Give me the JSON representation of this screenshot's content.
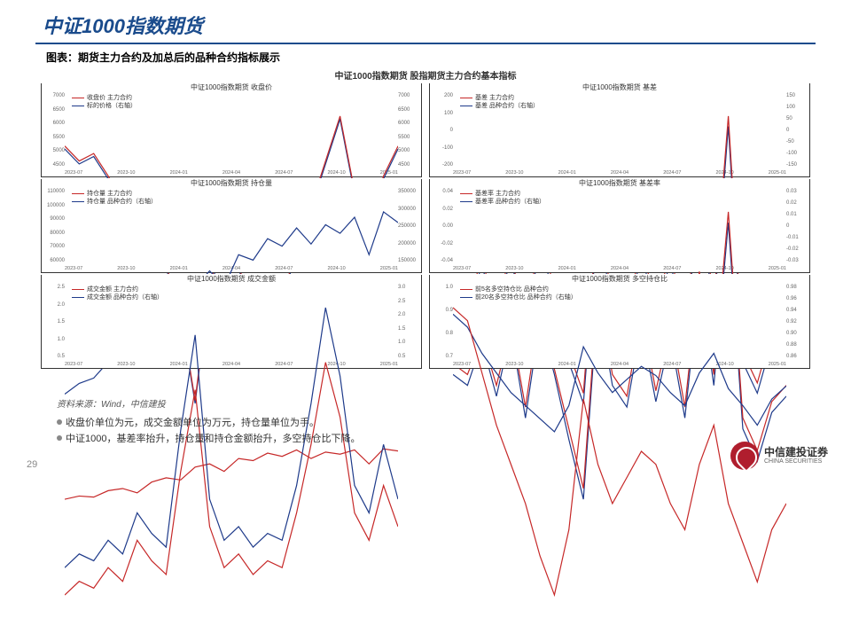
{
  "title": "中证1000指数期货",
  "chart_caption": "图表：期货主力合约及加总后的品种合约指标展示",
  "overall_title": "中证1000指数期货 股指期货主力合约基本指标",
  "colors": {
    "series1": "#c62828",
    "series2": "#1e3a8a",
    "border": "#333333",
    "grid": "#e8e8e8",
    "title": "#1a4b8c"
  },
  "x_ticks": [
    "2023-07",
    "2023-10",
    "2024-01",
    "2024-04",
    "2024-07",
    "2024-10",
    "2025-01"
  ],
  "panels": [
    {
      "title": "中证1000指数期货 收盘价",
      "legend": [
        "收盘价 主力合约",
        "标的价格（右轴）"
      ],
      "y_left": [
        "7000",
        "6500",
        "6000",
        "5500",
        "5000",
        "4500"
      ],
      "y_right": [
        "7000",
        "6500",
        "6000",
        "5500",
        "5000",
        "4500"
      ],
      "series1": [
        6300,
        6200,
        6250,
        6100,
        5900,
        5600,
        5700,
        5500,
        5200,
        4600,
        5400,
        5600,
        5500,
        5200,
        4900,
        5300,
        5600,
        5900,
        6200,
        6500,
        6000,
        5750,
        6100,
        6300
      ],
      "series2": [
        6280,
        6180,
        6230,
        6080,
        5880,
        5580,
        5680,
        5480,
        5180,
        4580,
        5380,
        5580,
        5480,
        5180,
        4880,
        5280,
        5580,
        5880,
        6180,
        6480,
        5980,
        5730,
        6080,
        6280
      ]
    },
    {
      "title": "中证1000指数期货 基差",
      "legend": [
        "基差 主力合约",
        "基差 品种合约（右轴）"
      ],
      "y_left": [
        "200",
        "100",
        "0",
        "-100",
        "-200"
      ],
      "y_right": [
        "150",
        "100",
        "50",
        "0",
        "-50",
        "-100",
        "-150"
      ],
      "series1": [
        -20,
        -30,
        10,
        -40,
        20,
        -60,
        40,
        -20,
        -80,
        -120,
        60,
        -30,
        -50,
        30,
        -40,
        20,
        -60,
        80,
        -30,
        150,
        -80,
        -110,
        -60,
        -40
      ],
      "series2": [
        -30,
        -40,
        5,
        -50,
        15,
        -70,
        30,
        -30,
        -90,
        -130,
        50,
        -40,
        -60,
        20,
        -50,
        10,
        -70,
        70,
        -40,
        140,
        -90,
        -120,
        -70,
        -50
      ]
    },
    {
      "title": "中证1000指数期货 持仓量",
      "legend": [
        "持仓量 主力合约",
        "持仓量 品种合约（右轴）"
      ],
      "y_left": [
        "110000",
        "100000",
        "90000",
        "80000",
        "70000",
        "60000"
      ],
      "y_right": [
        "350000",
        "300000",
        "250000",
        "200000",
        "150000"
      ],
      "series1": [
        62000,
        65000,
        64000,
        70000,
        72000,
        68000,
        78000,
        82000,
        80000,
        92000,
        95000,
        88000,
        100000,
        98000,
        105000,
        102000,
        108000,
        100000,
        106000,
        104000,
        108000,
        95000,
        109000,
        107000
      ],
      "series2": [
        160000,
        170000,
        175000,
        190000,
        200000,
        195000,
        220000,
        235000,
        228000,
        260000,
        275000,
        260000,
        290000,
        285000,
        305000,
        298000,
        315000,
        300000,
        318000,
        310000,
        325000,
        290000,
        330000,
        320000
      ]
    },
    {
      "title": "中证1000指数期货 基差率",
      "legend": [
        "基差率 主力合约",
        "基差率 品种合约（右轴）"
      ],
      "y_left": [
        "0.04",
        "0.02",
        "0.00",
        "-0.02",
        "-0.04"
      ],
      "y_right": [
        "0.03",
        "0.02",
        "0.01",
        "0",
        "-0.01",
        "-0.02",
        "-0.03"
      ],
      "series1": [
        -0.003,
        -0.005,
        0.002,
        -0.007,
        0.004,
        -0.011,
        0.007,
        -0.004,
        -0.015,
        -0.026,
        0.011,
        -0.005,
        -0.009,
        0.006,
        -0.008,
        0.004,
        -0.011,
        0.014,
        -0.005,
        0.025,
        -0.013,
        -0.019,
        -0.01,
        -0.007
      ],
      "series2": [
        -0.005,
        -0.007,
        0.001,
        -0.009,
        0.003,
        -0.013,
        0.005,
        -0.005,
        -0.017,
        -0.028,
        0.009,
        -0.007,
        -0.011,
        0.004,
        -0.01,
        0.002,
        -0.013,
        0.012,
        -0.007,
        0.023,
        -0.015,
        -0.021,
        -0.012,
        -0.009
      ]
    },
    {
      "title": "中证1000指数期货 成交金额",
      "legend": [
        "成交金额 主力合约",
        "成交金额 品种合约（右轴）"
      ],
      "y_left": [
        "2.5",
        "2.0",
        "1.5",
        "1.0",
        "0.5"
      ],
      "y_right": [
        "3.0",
        "2.5",
        "2.0",
        "1.5",
        "1.0",
        "0.5"
      ],
      "series1": [
        0.7,
        0.8,
        0.75,
        0.9,
        0.8,
        1.1,
        0.95,
        0.85,
        1.6,
        2.2,
        1.2,
        0.9,
        1.0,
        0.85,
        0.95,
        0.9,
        1.3,
        1.8,
        2.4,
        2.0,
        1.3,
        1.1,
        1.5,
        1.2
      ],
      "series2": [
        0.9,
        1.0,
        0.95,
        1.1,
        1.0,
        1.3,
        1.15,
        1.05,
        1.9,
        2.6,
        1.4,
        1.1,
        1.2,
        1.05,
        1.15,
        1.1,
        1.5,
        2.1,
        2.8,
        2.3,
        1.5,
        1.3,
        1.8,
        1.4
      ]
    },
    {
      "title": "中证1000指数期货 多空持仓比",
      "legend": [
        "前5名多空持仓比 品种合约",
        "前20名多空持仓比 品种合约（右轴）"
      ],
      "y_left": [
        "1.0",
        "0.9",
        "0.8",
        "0.7"
      ],
      "y_right": [
        "0.98",
        "0.96",
        "0.94",
        "0.92",
        "0.90",
        "0.88",
        "0.86"
      ],
      "series1": [
        0.97,
        0.96,
        0.92,
        0.88,
        0.85,
        0.82,
        0.78,
        0.75,
        0.8,
        0.9,
        0.85,
        0.82,
        0.84,
        0.86,
        0.85,
        0.82,
        0.8,
        0.85,
        0.88,
        0.82,
        0.79,
        0.76,
        0.8,
        0.82
      ],
      "series2": [
        0.965,
        0.955,
        0.935,
        0.92,
        0.905,
        0.895,
        0.885,
        0.875,
        0.895,
        0.94,
        0.92,
        0.905,
        0.915,
        0.925,
        0.918,
        0.905,
        0.895,
        0.92,
        0.935,
        0.908,
        0.895,
        0.88,
        0.9,
        0.91
      ]
    }
  ],
  "source": "资料来源：Wind，中信建投",
  "bullets": [
    "收盘价单位为元，成交金额单位为万元，持仓量单位为手。",
    "中证1000，基差率抬升，持仓量和持仓金额抬升，多空持仓比下降。"
  ],
  "page_number": "29",
  "logo": {
    "cn": "中信建投证券",
    "en": "CHINA SECURITIES"
  }
}
